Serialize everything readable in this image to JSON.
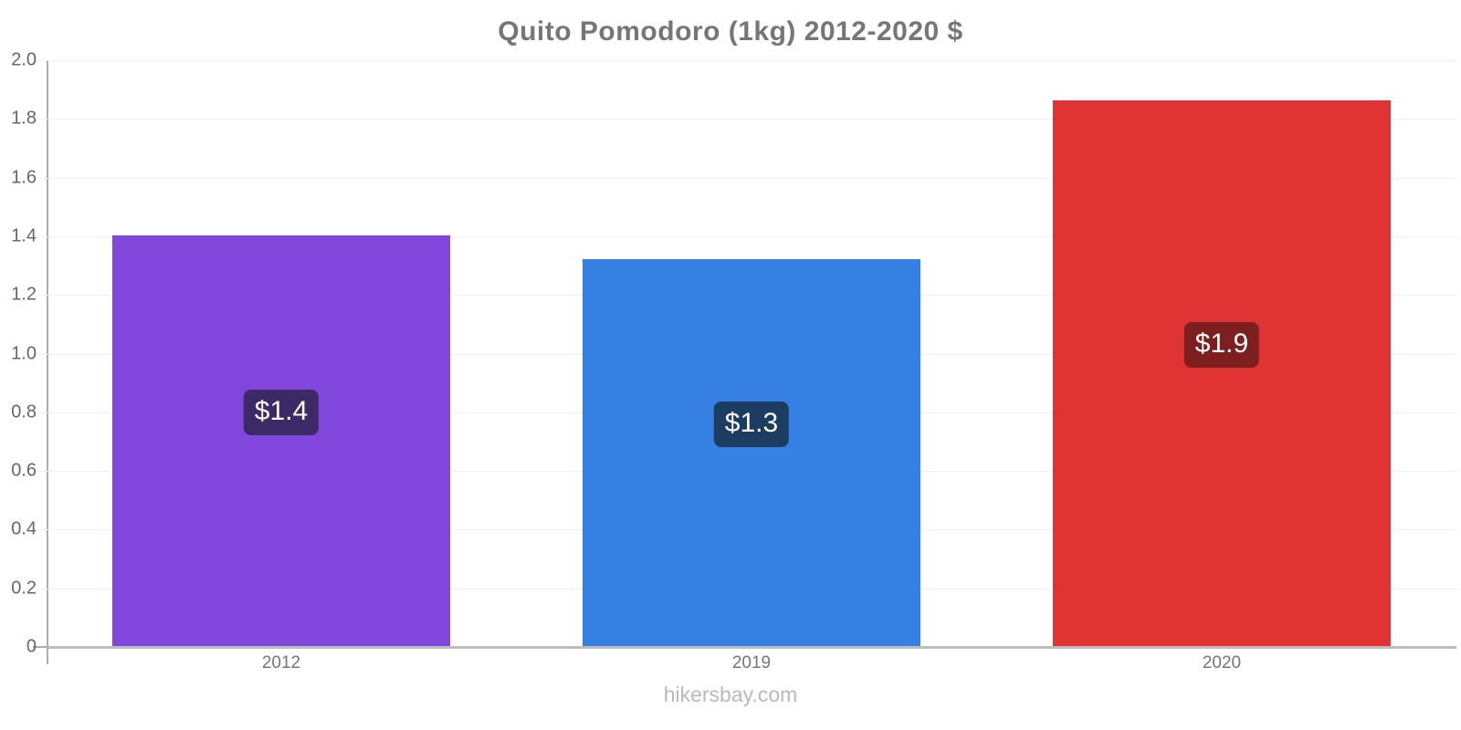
{
  "chart_data": {
    "type": "bar",
    "title": "Quito Pomodoro (1kg) 2012-2020 $",
    "footer": "hikersbay.com",
    "categories": [
      "2012",
      "2019",
      "2020"
    ],
    "values": [
      1.4,
      1.32,
      1.86
    ],
    "bar_labels": [
      "$1.4",
      "$1.3",
      "$1.9"
    ],
    "bar_colors": [
      "#8146db",
      "#3580e2",
      "#e03434"
    ],
    "badge_colors": [
      "#3b2a66",
      "#1c3c62",
      "#7e1f1f"
    ],
    "currency": "$",
    "ylim": [
      0,
      2
    ],
    "ytick_step": 0.2,
    "yticks": [
      "2.0",
      "1.8",
      "1.6",
      "1.4",
      "1.2",
      "1.0",
      "0.8",
      "0.6",
      "0.4",
      "0.2",
      "0"
    ],
    "grid": true,
    "legend": false,
    "xlabel": "",
    "ylabel": ""
  },
  "colors": {
    "title": "#76767a",
    "axis_line": "#b3b3b3",
    "gridline": "#efefef",
    "ytick_label": "#666666",
    "xtick_label": "#757575",
    "footer": "#b9b7c7",
    "badge_text": "#ffffff",
    "background": "#ffffff"
  }
}
